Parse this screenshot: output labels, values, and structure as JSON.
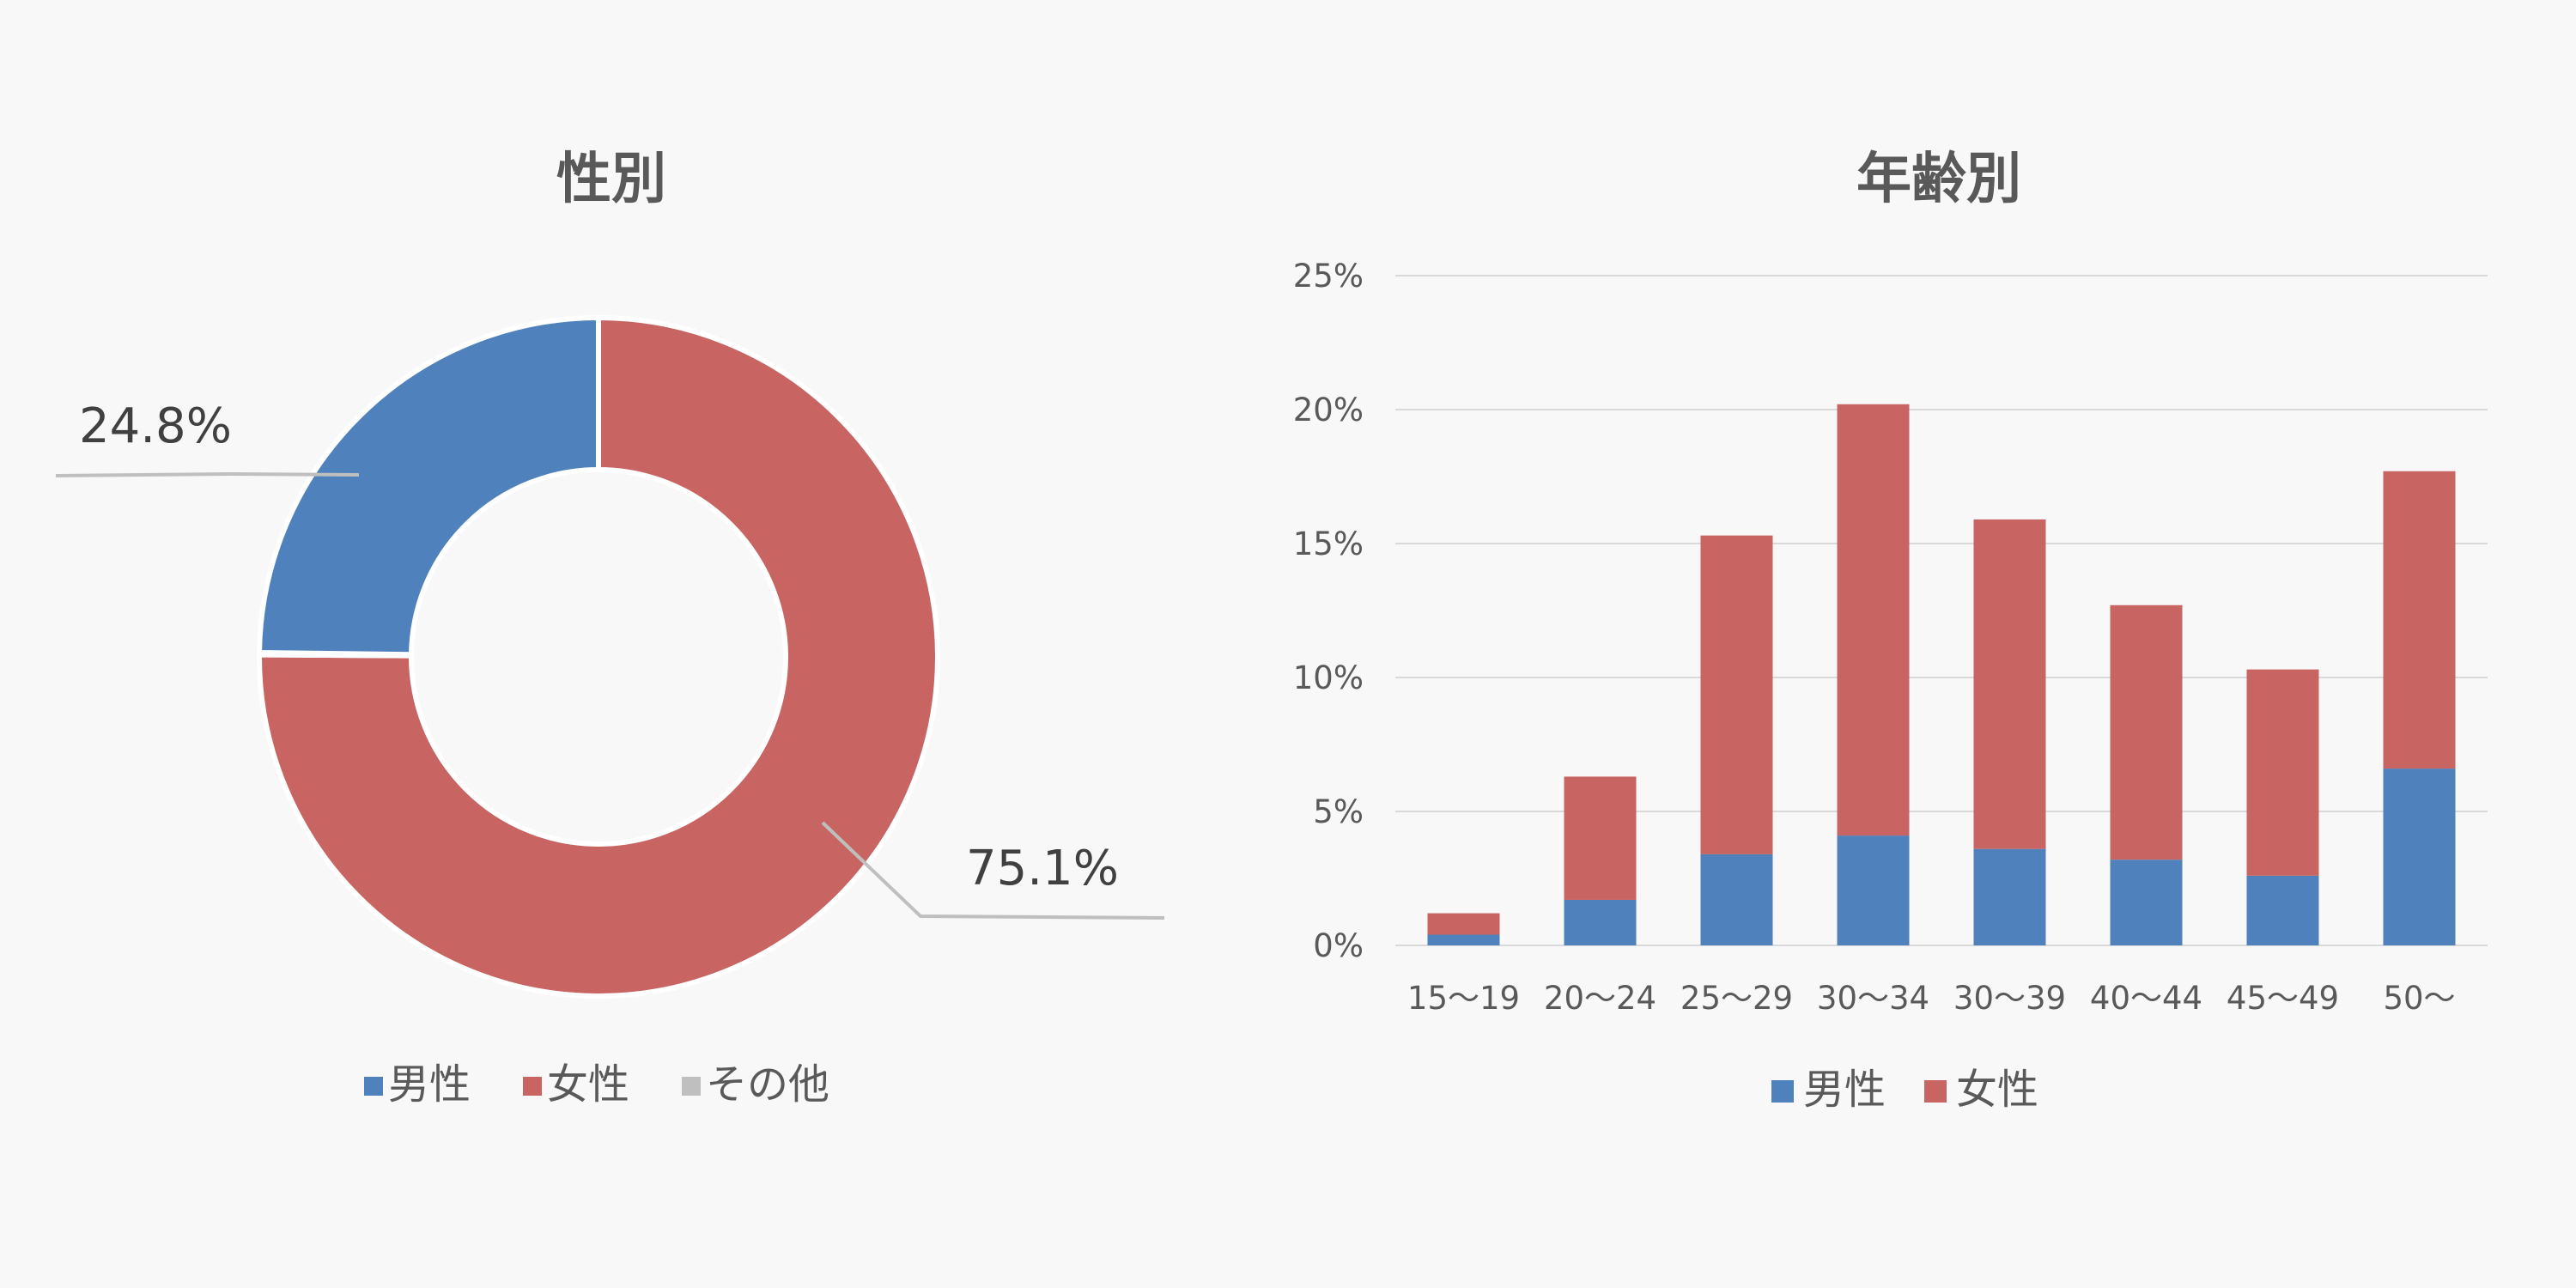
{
  "chart_data": [
    {
      "type": "pie",
      "subtype": "donut",
      "title": "性別",
      "slices": [
        {
          "label": "男性",
          "value": 24.8,
          "color": "#4f81bd",
          "data_label": "24.8%"
        },
        {
          "label": "女性",
          "value": 75.1,
          "color": "#c86462",
          "data_label": "75.1%"
        },
        {
          "label": "その他",
          "value": 0.1,
          "color": "#bfbfbf"
        }
      ],
      "legend": {
        "position": "bottom",
        "entries": [
          "男性",
          "女性",
          "その他"
        ]
      }
    },
    {
      "type": "bar",
      "stacked": true,
      "title": "年齢別",
      "categories": [
        "15～19",
        "20～24",
        "25～29",
        "30～34",
        "30～39",
        "40～44",
        "45～49",
        "50～"
      ],
      "series": [
        {
          "name": "男性",
          "color": "#4f81bd",
          "values": [
            0.4,
            1.7,
            3.4,
            4.1,
            3.6,
            3.2,
            2.6,
            6.6
          ]
        },
        {
          "name": "女性",
          "color": "#c86462",
          "values": [
            0.8,
            4.6,
            11.9,
            16.1,
            12.3,
            9.5,
            7.7,
            11.1
          ]
        }
      ],
      "ylim": [
        0,
        25
      ],
      "yticks": [
        "0%",
        "5%",
        "10%",
        "15%",
        "20%",
        "25%"
      ],
      "grid": true,
      "legend": {
        "position": "bottom",
        "entries": [
          "男性",
          "女性"
        ]
      }
    }
  ]
}
